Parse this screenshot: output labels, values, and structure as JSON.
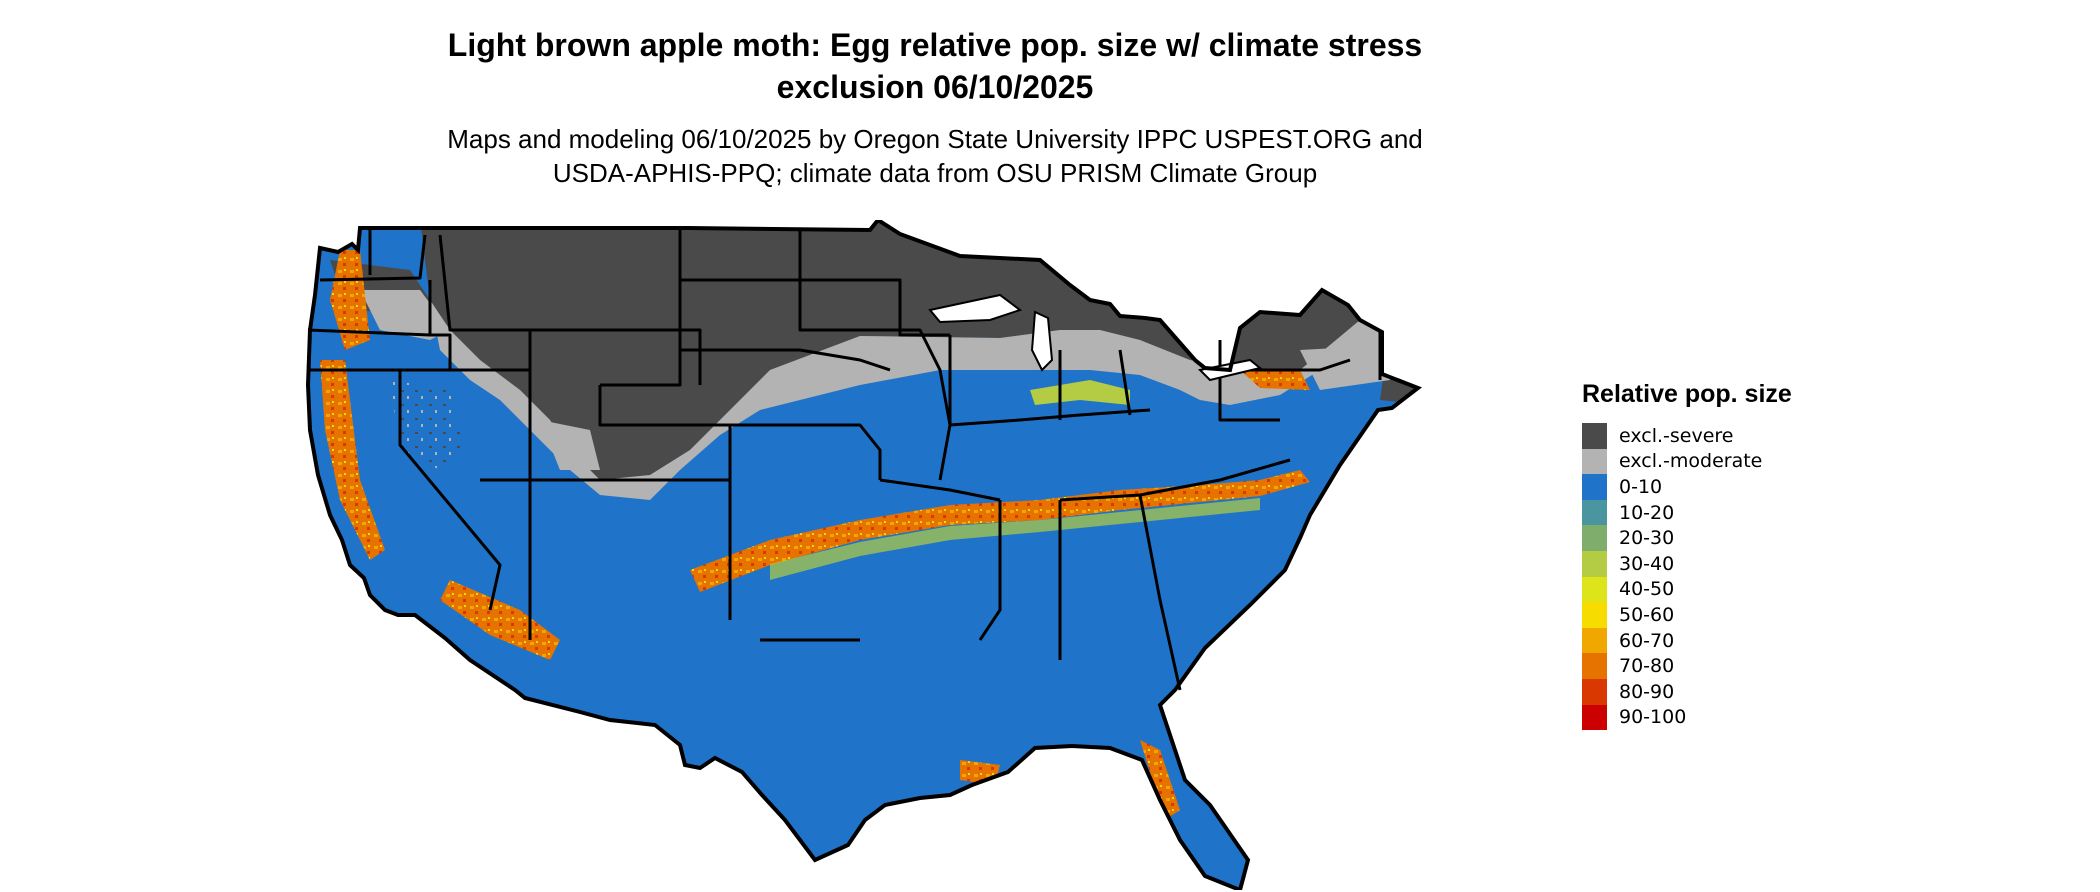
{
  "title": [
    "Light brown apple moth: Egg relative pop. size w/ climate stress",
    "exclusion 06/10/2025"
  ],
  "subtitle": [
    "Maps and modeling 06/10/2025 by Oregon State University IPPC USPEST.ORG and",
    "USDA-APHIS-PPQ; climate data from OSU PRISM Climate Group"
  ],
  "legend": {
    "title": "Relative pop. size",
    "items": [
      {
        "label": "excl.-severe",
        "color": "#4a4a4a"
      },
      {
        "label": "excl.-moderate",
        "color": "#b3b3b3"
      },
      {
        "label": "0-10",
        "color": "#1f74c9"
      },
      {
        "label": "10-20",
        "color": "#4a96a0"
      },
      {
        "label": "20-30",
        "color": "#7fad6b"
      },
      {
        "label": "30-40",
        "color": "#b3cc44"
      },
      {
        "label": "40-50",
        "color": "#dde51a"
      },
      {
        "label": "50-60",
        "color": "#f7dc00"
      },
      {
        "label": "60-70",
        "color": "#f0a800"
      },
      {
        "label": "70-80",
        "color": "#e67300"
      },
      {
        "label": "80-90",
        "color": "#d93800"
      },
      {
        "label": "90-100",
        "color": "#cc0000"
      }
    ]
  }
}
